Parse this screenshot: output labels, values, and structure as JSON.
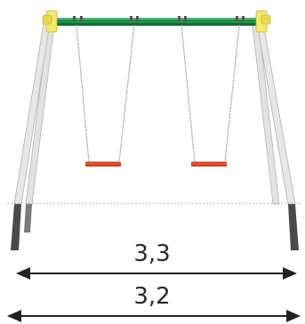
{
  "dimensions": {
    "upper": {
      "value": "3,3"
    },
    "lower": {
      "value": "3,2"
    }
  },
  "colors": {
    "beam_green": "#1f8f4c",
    "beam_shadow": "#146a36",
    "bracket_yellow": "#e9d94a",
    "seat_red": "#e0502d",
    "post_light": "#d8d8d8",
    "post_dark": "#4a4a4a",
    "chain_gray": "#9a9a9a",
    "arrow_dark": "#222222"
  },
  "swings": {
    "count": 2
  }
}
